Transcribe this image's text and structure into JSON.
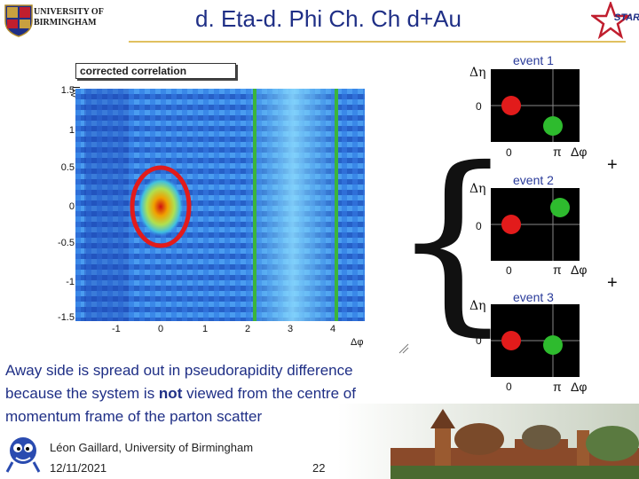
{
  "header": {
    "title": "d. Eta-d. Phi Ch. Ch d+Au",
    "logo_text_line1": "UNIVERSITY OF",
    "logo_text_line2": "BIRMINGHAM",
    "star_label": "STAR"
  },
  "plot": {
    "title": "corrected correlation",
    "y_axis_label": "Δη",
    "x_axis_label": "Δφ",
    "y_ticks": [
      "1.5",
      "1",
      "0.5",
      "0",
      "-0.5",
      "-1",
      "-1.5"
    ],
    "x_ticks": [
      "-1",
      "0",
      "1",
      "2",
      "3",
      "4"
    ],
    "highlight_near_color": "#e21b1b",
    "highlight_away_color": "#3bb53b"
  },
  "events": [
    {
      "label": "event 1",
      "eta": "Δη",
      "zero_y": "0",
      "zero_x": "0",
      "pi": "π",
      "dphi": "Δφ"
    },
    {
      "label": "event 2",
      "eta": "Δη",
      "zero_y": "0",
      "zero_x": "0",
      "pi": "π",
      "dphi": "Δφ"
    },
    {
      "label": "event 3",
      "eta": "Δη",
      "zero_y": "0",
      "zero_x": "0",
      "pi": "π",
      "dphi": "Δφ"
    }
  ],
  "plus_sign": "+",
  "body": {
    "line1_prefix": "Away side is spread out in pseudorapidity difference",
    "line2_prefix": "because the system is ",
    "line2_bold": "not",
    "line2_suffix": " viewed from the centre of",
    "line3": "momentum frame of the parton scatter"
  },
  "footer": {
    "author": "Léon Gaillard, University of Birmingham",
    "date": "12/11/2021",
    "page": "22"
  }
}
